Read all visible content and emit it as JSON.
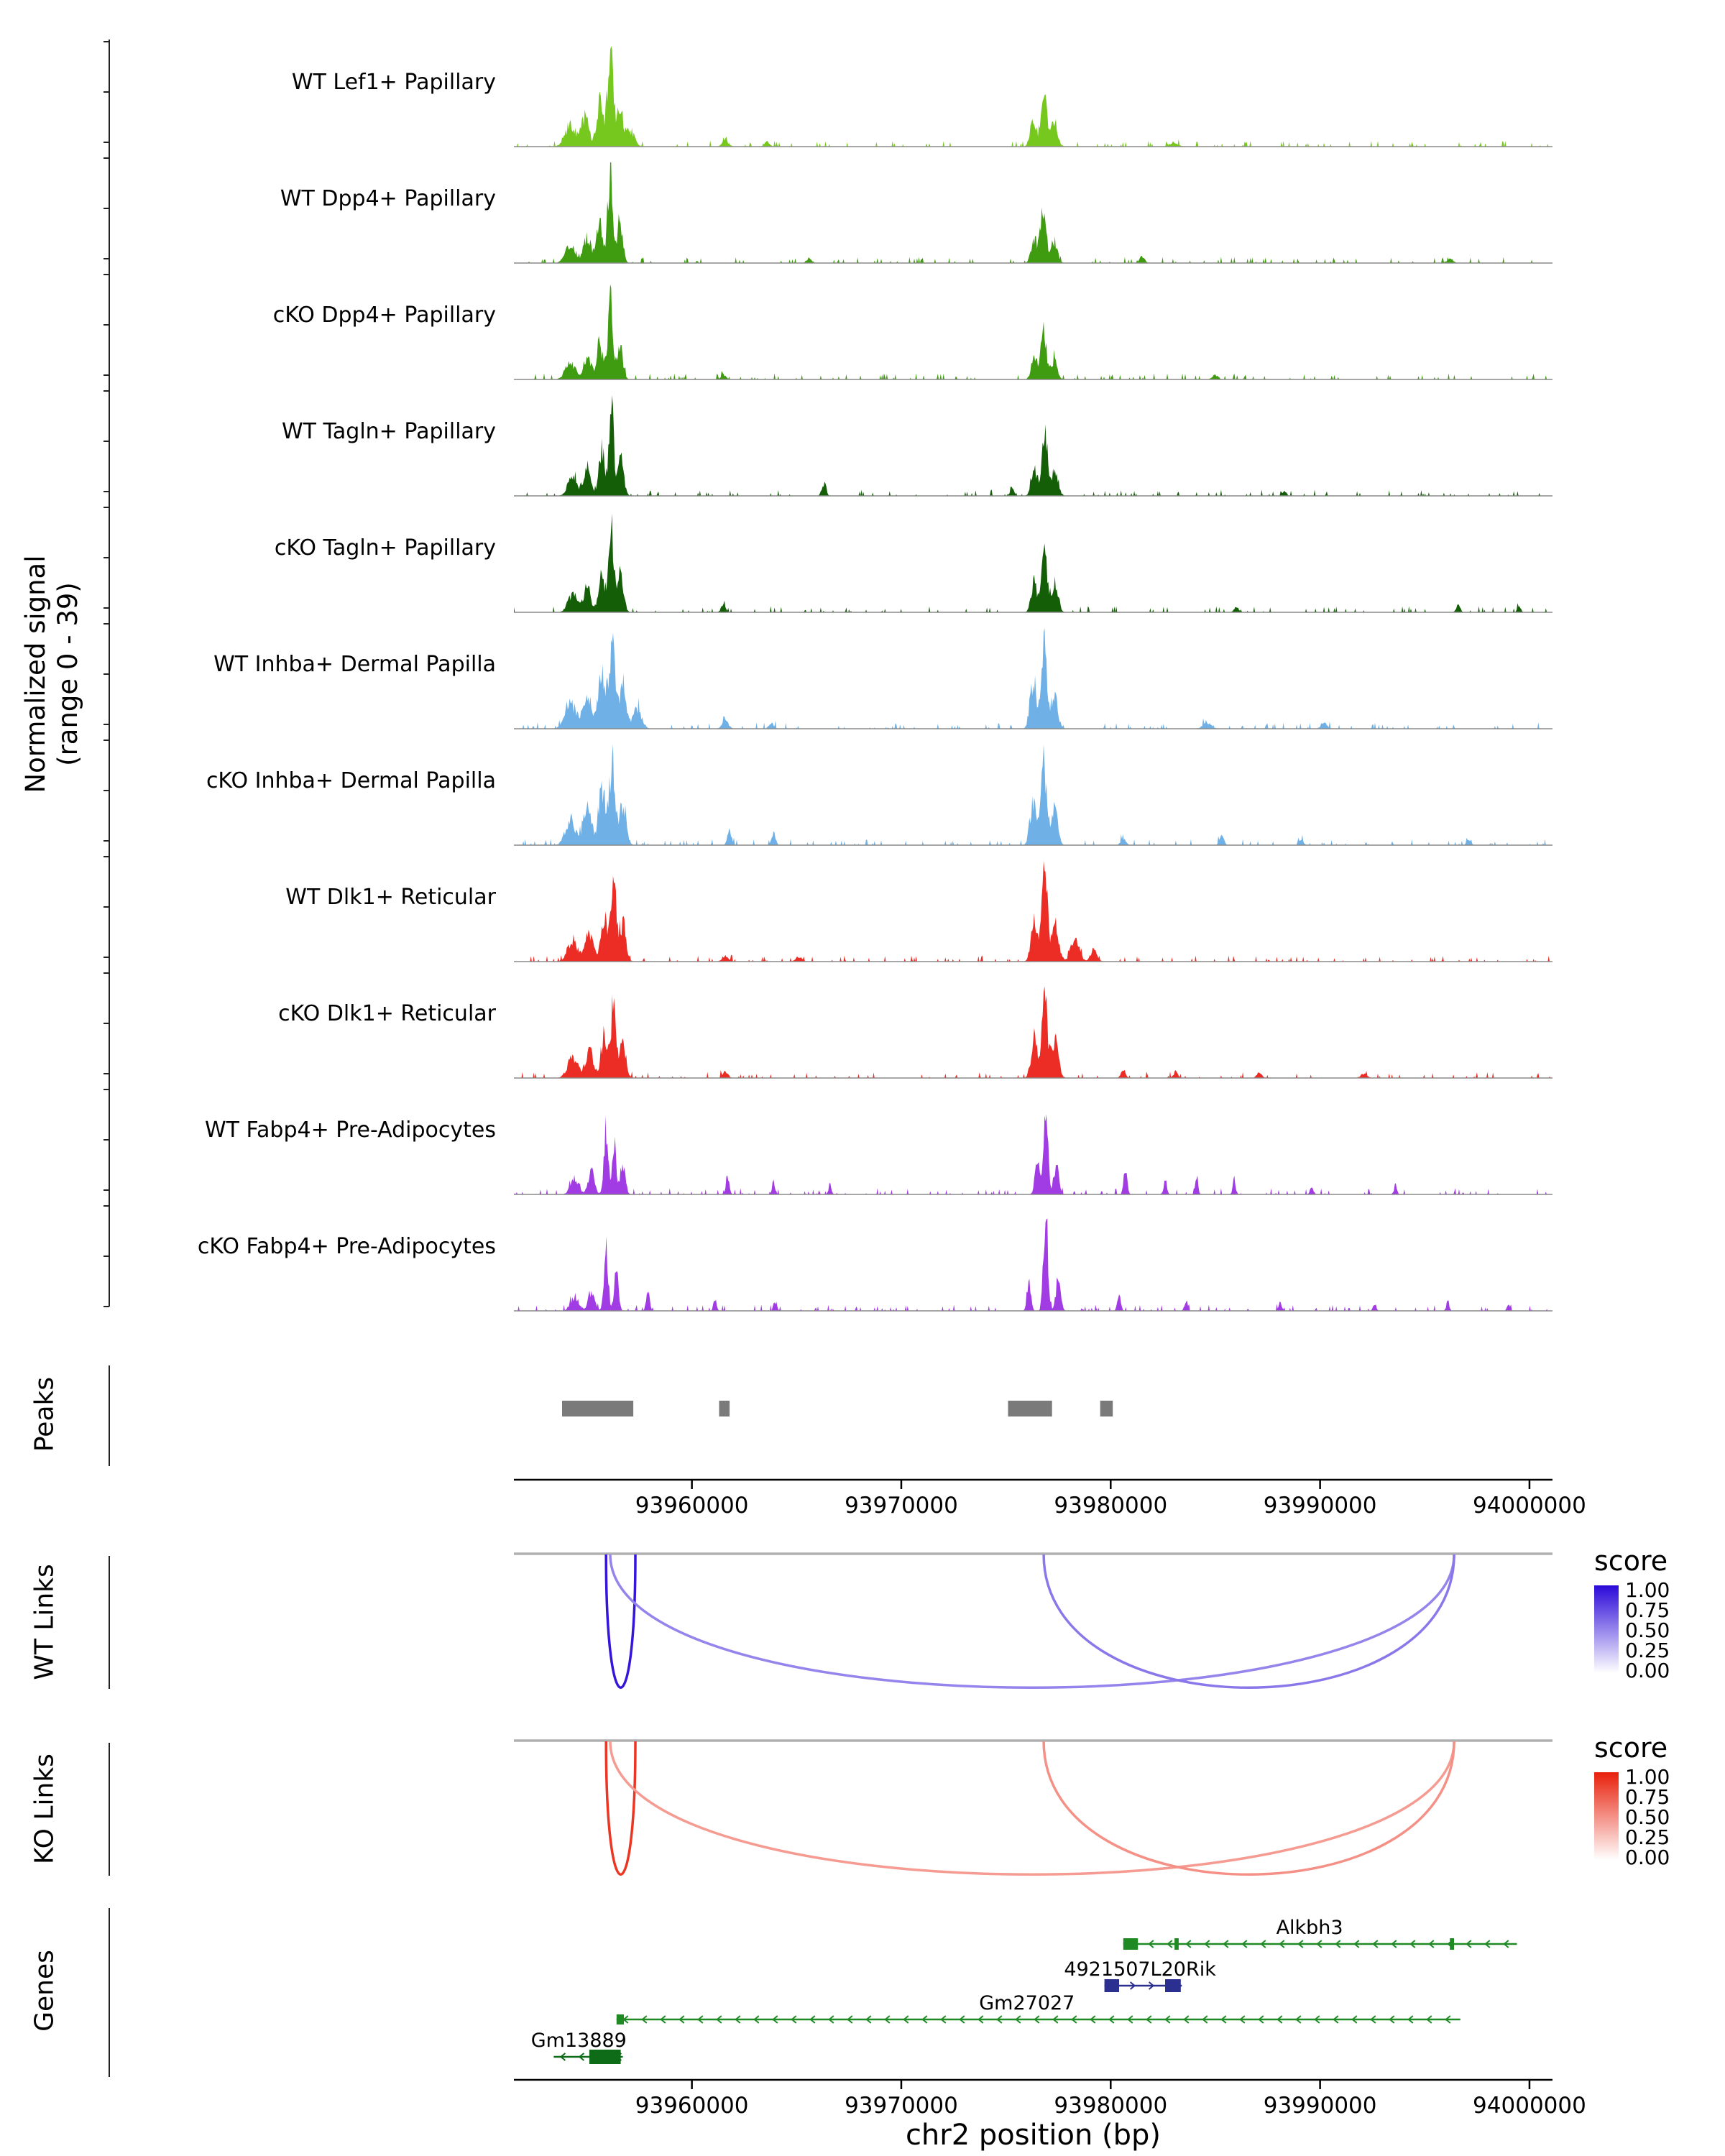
{
  "figure": {
    "signal_axis_label_line1": "Normalized signal",
    "signal_axis_label_line2": "(range 0 - 39)",
    "section_labels": {
      "peaks": "Peaks",
      "wt_links": "WT Links",
      "ko_links": "KO Links",
      "genes": "Genes"
    }
  },
  "chart_data": {
    "type": "area",
    "subtype": "genome-browser-coverage-tracks",
    "chrom": "chr2",
    "region_start": 93951500,
    "region_end": 94001100,
    "signal_range": [
      0,
      39
    ],
    "x_ticks": [
      93960000,
      93970000,
      93980000,
      93990000,
      94000000
    ],
    "x_tick_labels": [
      "93960000",
      "93970000",
      "93980000",
      "93990000",
      "94000000"
    ],
    "x_axis_label": "chr2 position (bp)",
    "tracks": [
      {
        "name": "WT Lef1+ Papillary",
        "color": "#76c81e",
        "peaks": [
          [
            93954200,
            0.2,
            260
          ],
          [
            93954900,
            0.28,
            180
          ],
          [
            93955600,
            0.42,
            160
          ],
          [
            93956100,
            1.0,
            130
          ],
          [
            93956550,
            0.42,
            150
          ],
          [
            93957050,
            0.16,
            200
          ],
          [
            93976300,
            0.28,
            140
          ],
          [
            93976800,
            0.6,
            130
          ],
          [
            93977300,
            0.26,
            160
          ],
          [
            93961600,
            0.06,
            150
          ],
          [
            93963600,
            0.05,
            120
          ],
          [
            93983000,
            0.04,
            200
          ]
        ]
      },
      {
        "name": "WT Dpp4+ Papillary",
        "color": "#3f9b0f",
        "peaks": [
          [
            93954200,
            0.18,
            240
          ],
          [
            93955000,
            0.25,
            180
          ],
          [
            93955600,
            0.4,
            150
          ],
          [
            93956100,
            1.0,
            110
          ],
          [
            93956550,
            0.4,
            140
          ],
          [
            93976350,
            0.25,
            140
          ],
          [
            93976800,
            0.55,
            130
          ],
          [
            93977300,
            0.22,
            150
          ],
          [
            93965600,
            0.05,
            120
          ],
          [
            93981500,
            0.06,
            120
          ],
          [
            93996200,
            0.04,
            150
          ]
        ]
      },
      {
        "name": "cKO Dpp4+ Papillary",
        "color": "#3f9b0f",
        "peaks": [
          [
            93954200,
            0.16,
            240
          ],
          [
            93955000,
            0.22,
            180
          ],
          [
            93955600,
            0.35,
            150
          ],
          [
            93956100,
            0.75,
            120
          ],
          [
            93956550,
            0.34,
            140
          ],
          [
            93976350,
            0.22,
            140
          ],
          [
            93976800,
            0.5,
            130
          ],
          [
            93977300,
            0.2,
            150
          ],
          [
            93961500,
            0.05,
            120
          ],
          [
            93985000,
            0.04,
            150
          ]
        ]
      },
      {
        "name": "WT Tagln+ Papillary",
        "color": "#155e08",
        "peaks": [
          [
            93954300,
            0.2,
            220
          ],
          [
            93955000,
            0.26,
            170
          ],
          [
            93955700,
            0.45,
            140
          ],
          [
            93956150,
            1.0,
            110
          ],
          [
            93956600,
            0.4,
            140
          ],
          [
            93976350,
            0.28,
            140
          ],
          [
            93976850,
            0.6,
            130
          ],
          [
            93977350,
            0.25,
            150
          ],
          [
            93966300,
            0.11,
            100
          ],
          [
            93975300,
            0.06,
            100
          ],
          [
            93988300,
            0.05,
            90
          ]
        ]
      },
      {
        "name": "cKO Tagln+ Papillary",
        "color": "#155e08",
        "peaks": [
          [
            93954300,
            0.18,
            220
          ],
          [
            93955000,
            0.24,
            170
          ],
          [
            93955700,
            0.4,
            140
          ],
          [
            93956150,
            0.8,
            120
          ],
          [
            93956600,
            0.36,
            140
          ],
          [
            93976350,
            0.3,
            140
          ],
          [
            93976850,
            0.62,
            130
          ],
          [
            93977350,
            0.26,
            150
          ],
          [
            93961500,
            0.09,
            100
          ],
          [
            93986000,
            0.05,
            120
          ],
          [
            93996600,
            0.08,
            90
          ],
          [
            93999500,
            0.05,
            90
          ]
        ]
      },
      {
        "name": "WT Inhba+ Dermal Papilla",
        "color": "#6fb1e7",
        "peaks": [
          [
            93954200,
            0.25,
            260
          ],
          [
            93955000,
            0.35,
            200
          ],
          [
            93955700,
            0.55,
            180
          ],
          [
            93956200,
            0.78,
            150
          ],
          [
            93956700,
            0.45,
            160
          ],
          [
            93957400,
            0.2,
            200
          ],
          [
            93976300,
            0.45,
            150
          ],
          [
            93976800,
            0.85,
            130
          ],
          [
            93977300,
            0.35,
            160
          ],
          [
            93961600,
            0.08,
            150
          ],
          [
            93963800,
            0.06,
            120
          ],
          [
            93984600,
            0.06,
            200
          ],
          [
            93990200,
            0.05,
            150
          ]
        ]
      },
      {
        "name": "cKO Inhba+ Dermal Papilla",
        "color": "#6fb1e7",
        "peaks": [
          [
            93954200,
            0.25,
            240
          ],
          [
            93955000,
            0.4,
            190
          ],
          [
            93955700,
            0.6,
            160
          ],
          [
            93956200,
            0.85,
            140
          ],
          [
            93956700,
            0.42,
            160
          ],
          [
            93976300,
            0.45,
            150
          ],
          [
            93976800,
            0.88,
            130
          ],
          [
            93977300,
            0.35,
            160
          ],
          [
            93961800,
            0.14,
            100
          ],
          [
            93963900,
            0.12,
            90
          ],
          [
            93980600,
            0.07,
            120
          ],
          [
            93985300,
            0.1,
            100
          ],
          [
            93989100,
            0.06,
            100
          ],
          [
            93997100,
            0.05,
            100
          ]
        ]
      },
      {
        "name": "WT Dlk1+ Reticular",
        "color": "#ec2d25",
        "peaks": [
          [
            93954300,
            0.22,
            240
          ],
          [
            93955100,
            0.3,
            180
          ],
          [
            93955800,
            0.48,
            150
          ],
          [
            93956250,
            0.8,
            130
          ],
          [
            93956700,
            0.38,
            150
          ],
          [
            93976350,
            0.45,
            150
          ],
          [
            93976850,
            0.88,
            130
          ],
          [
            93977350,
            0.4,
            160
          ],
          [
            93978300,
            0.22,
            200
          ],
          [
            93979200,
            0.12,
            150
          ],
          [
            93961600,
            0.06,
            150
          ],
          [
            93965100,
            0.05,
            150
          ]
        ]
      },
      {
        "name": "cKO Dlk1+ Reticular",
        "color": "#ec2d25",
        "peaks": [
          [
            93954300,
            0.2,
            240
          ],
          [
            93955100,
            0.28,
            180
          ],
          [
            93955800,
            0.42,
            150
          ],
          [
            93956250,
            0.72,
            130
          ],
          [
            93956700,
            0.34,
            150
          ],
          [
            93976350,
            0.4,
            150
          ],
          [
            93976850,
            0.78,
            130
          ],
          [
            93977350,
            0.36,
            160
          ],
          [
            93961600,
            0.07,
            120
          ],
          [
            93980600,
            0.09,
            100
          ],
          [
            93983100,
            0.06,
            100
          ],
          [
            93987100,
            0.05,
            120
          ],
          [
            93992100,
            0.04,
            150
          ]
        ]
      },
      {
        "name": "WT Fabp4+ Pre-Adipocytes",
        "color": "#a13be3",
        "peaks": [
          [
            93954400,
            0.15,
            200
          ],
          [
            93955200,
            0.22,
            150
          ],
          [
            93955900,
            0.7,
            100
          ],
          [
            93956300,
            0.55,
            90
          ],
          [
            93956700,
            0.3,
            120
          ],
          [
            93976500,
            0.35,
            110
          ],
          [
            93976900,
            0.92,
            100
          ],
          [
            93977400,
            0.3,
            120
          ],
          [
            93961700,
            0.18,
            80
          ],
          [
            93963900,
            0.12,
            70
          ],
          [
            93966600,
            0.1,
            70
          ],
          [
            93980700,
            0.25,
            80
          ],
          [
            93982600,
            0.12,
            80
          ],
          [
            93984100,
            0.18,
            70
          ],
          [
            93985900,
            0.15,
            70
          ],
          [
            93989600,
            0.08,
            80
          ],
          [
            93993600,
            0.06,
            80
          ]
        ]
      },
      {
        "name": "cKO Fabp4+ Pre-Adipocytes",
        "color": "#a13be3",
        "peaks": [
          [
            93954400,
            0.14,
            200
          ],
          [
            93955200,
            0.2,
            150
          ],
          [
            93955900,
            0.62,
            100
          ],
          [
            93956400,
            0.5,
            90
          ],
          [
            93957900,
            0.2,
            80
          ],
          [
            93976100,
            0.3,
            90
          ],
          [
            93976900,
            1.0,
            100
          ],
          [
            93977500,
            0.32,
            110
          ],
          [
            93961100,
            0.12,
            70
          ],
          [
            93964000,
            0.08,
            70
          ],
          [
            93980400,
            0.15,
            80
          ],
          [
            93983600,
            0.1,
            80
          ],
          [
            93988100,
            0.08,
            80
          ],
          [
            93992600,
            0.08,
            70
          ],
          [
            93996100,
            0.1,
            70
          ],
          [
            93999000,
            0.06,
            70
          ]
        ]
      }
    ],
    "peaks": [
      [
        93953800,
        93957200
      ],
      [
        93961300,
        93961800
      ],
      [
        93975100,
        93977200
      ],
      [
        93979500,
        93980100
      ]
    ],
    "peaks_color": "#7a7a7a",
    "wt_links": {
      "legend_title": "score",
      "legend_ticks": [
        "1.00",
        "0.75",
        "0.50",
        "0.25",
        "0.00"
      ],
      "color_high": "#2b09d8",
      "color_low": "#ffffff",
      "arcs": [
        {
          "start": 93955900,
          "end": 93957300,
          "score": 0.95
        },
        {
          "start": 93956100,
          "end": 93996400,
          "score": 0.5
        },
        {
          "start": 93976800,
          "end": 93996400,
          "score": 0.55
        }
      ]
    },
    "ko_links": {
      "legend_title": "score",
      "legend_ticks": [
        "1.00",
        "0.75",
        "0.50",
        "0.25",
        "0.00"
      ],
      "color_high": "#e8200b",
      "color_low": "#ffffff",
      "arcs": [
        {
          "start": 93955900,
          "end": 93957300,
          "score": 0.9
        },
        {
          "start": 93956100,
          "end": 93996400,
          "score": 0.45
        },
        {
          "start": 93976800,
          "end": 93996400,
          "score": 0.5
        }
      ]
    },
    "genes": [
      {
        "name": "Alkbh3",
        "start": 93980600,
        "end": 93999400,
        "strand": "-",
        "color": "#1f8a24",
        "row": 0,
        "exon_h": 8,
        "exons": [
          [
            93980600,
            93981300
          ],
          [
            93983050,
            93983250
          ],
          [
            93996200,
            93996400
          ]
        ],
        "label_pos": 93989500
      },
      {
        "name": "4921507L20Rik",
        "start": 93979700,
        "end": 93983400,
        "strand": "+",
        "color": "#2b2f8f",
        "row": 1,
        "exon_h": 9,
        "exons": [
          [
            93979700,
            93980400
          ],
          [
            93982600,
            93983350
          ]
        ],
        "label_pos": 93981400
      },
      {
        "name": "Gm27027",
        "start": 93956400,
        "end": 93996700,
        "strand": "-",
        "color": "#1f8a24",
        "row": 2,
        "exon_h": 7,
        "exons": [
          [
            93956400,
            93956750
          ]
        ],
        "label_pos": 93976000
      },
      {
        "name": "Gm13889",
        "start": 93953400,
        "end": 93956700,
        "strand": "-",
        "color": "#0e6b18",
        "row": 3,
        "exon_h": 10,
        "exons": [
          [
            93955100,
            93956600
          ]
        ],
        "label_pos": 93954600
      }
    ]
  }
}
